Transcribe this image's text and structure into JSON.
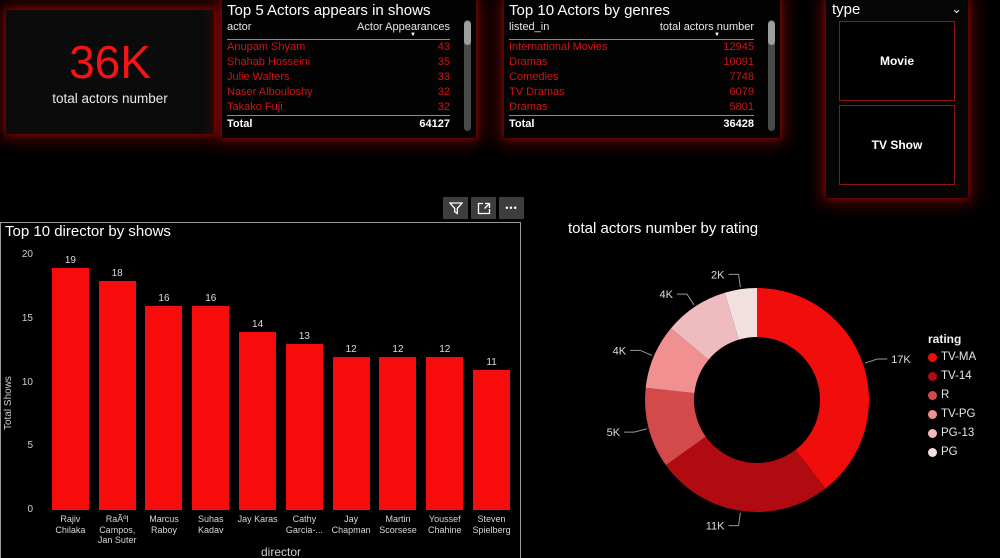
{
  "kpi": {
    "value": "36K",
    "label": "total actors number"
  },
  "tables": [
    {
      "title": "Top 5 Actors appears in shows",
      "columns": [
        "actor",
        "Actor Appearances"
      ],
      "sort_column": 1,
      "rows": [
        [
          "Anupam Shyam",
          "43"
        ],
        [
          "Shahab Hosseini",
          "35"
        ],
        [
          "Julie Walters",
          "33"
        ],
        [
          "Naser Albouloshy",
          "32"
        ],
        [
          "Takako Fuji",
          "32"
        ]
      ],
      "total_label": "Total",
      "total_value": "64127"
    },
    {
      "title": "Top 10 Actors by genres",
      "columns": [
        "listed_in",
        "total actors number"
      ],
      "sort_column": 1,
      "rows": [
        [
          "International Movies",
          "12945"
        ],
        [
          "Dramas",
          "10091"
        ],
        [
          "Comedies",
          "7748"
        ],
        [
          "TV Dramas",
          "6079"
        ],
        [
          "Dramas",
          "5801"
        ]
      ],
      "total_label": "Total",
      "total_value": "36428"
    }
  ],
  "slicer": {
    "title": "type",
    "options": [
      "Movie",
      "TV Show"
    ]
  },
  "toolbar": {
    "more_label": "•••"
  },
  "chart_data": [
    {
      "type": "bar",
      "title": "Top 10 director by shows",
      "categories": [
        "Rajiv Chilaka",
        "RaÃºl Campos, Jan Suter",
        "Marcus Raboy",
        "Suhas Kadav",
        "Jay Karas",
        "Cathy Garcia-...",
        "Jay Chapman",
        "Martin Scorsese",
        "Youssef Chahine",
        "Steven Spielberg"
      ],
      "values": [
        19,
        18,
        16,
        16,
        14,
        13,
        12,
        12,
        12,
        11
      ],
      "xlabel": "director",
      "ylabel": "Total Shows",
      "ylim": [
        0,
        20
      ],
      "yticks": [
        0,
        5,
        10,
        15,
        20
      ],
      "bar_color": "#f70b0b",
      "grid": false,
      "value_labels": true
    },
    {
      "type": "donut",
      "title": "total actors number by rating",
      "legend_title": "rating",
      "legend_position": "right",
      "series": [
        {
          "name": "TV-MA",
          "label": "17K",
          "value": 17,
          "color": "#f20d0d"
        },
        {
          "name": "TV-14",
          "label": "11K",
          "value": 11,
          "color": "#b00b10"
        },
        {
          "name": "R",
          "label": "5K",
          "value": 5,
          "color": "#d24a4a"
        },
        {
          "name": "TV-PG",
          "label": "4K",
          "value": 4,
          "color": "#f09090"
        },
        {
          "name": "PG-13",
          "label": "4K",
          "value": 4,
          "color": "#eebcbe"
        },
        {
          "name": "PG",
          "label": "2K",
          "value": 2,
          "color": "#f2e0de"
        }
      ]
    }
  ],
  "theme": {
    "background": "#000000",
    "accent_red": "#f20d0d",
    "table_row_red": "#d01515",
    "separator_blue": "#6d95a9",
    "glow_red": "#c80c0c"
  }
}
